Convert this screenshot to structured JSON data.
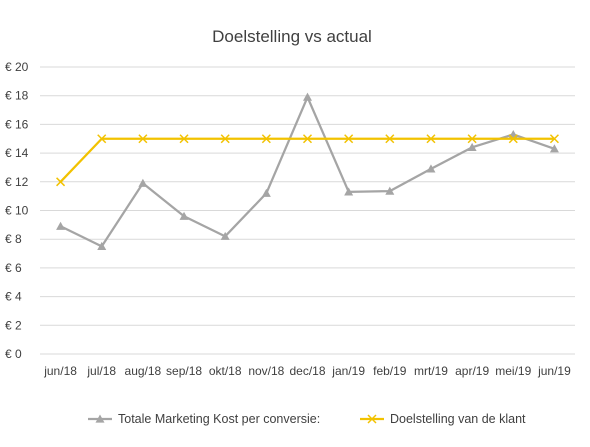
{
  "chart_data": {
    "type": "line",
    "title": "Doelstelling vs actual",
    "xlabel": "",
    "ylabel": "",
    "categories": [
      "jun/18",
      "jul/18",
      "aug/18",
      "sep/18",
      "okt/18",
      "nov/18",
      "dec/18",
      "jan/19",
      "feb/19",
      "mrt/19",
      "apr/19",
      "mei/19",
      "jun/19"
    ],
    "y_ticks": [
      "€ 0",
      "€ 2",
      "€ 4",
      "€ 6",
      "€ 8",
      "€ 10",
      "€ 12",
      "€ 14",
      "€ 16",
      "€ 18",
      "€ 20"
    ],
    "ylim": [
      0,
      20
    ],
    "grid": true,
    "legend_position": "bottom",
    "series": [
      {
        "name": "Totale Marketing Kost per conversie:",
        "color": "#a5a5a5",
        "marker": "triangle",
        "values": [
          8.9,
          7.5,
          11.9,
          9.6,
          8.2,
          11.2,
          17.9,
          11.3,
          11.35,
          12.9,
          14.4,
          15.3,
          14.3
        ]
      },
      {
        "name": "Doelstelling van de klant",
        "color": "#f2c200",
        "marker": "x",
        "values": [
          12,
          15,
          15,
          15,
          15,
          15,
          15,
          15,
          15,
          15,
          15,
          15,
          15
        ]
      }
    ]
  }
}
